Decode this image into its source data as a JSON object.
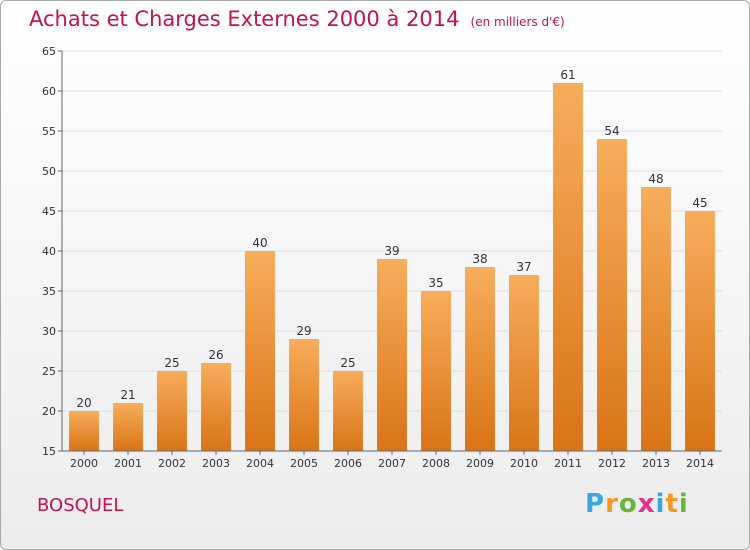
{
  "title": "Achats et Charges Externes 2000 à 2014",
  "unit": "(en milliers d'€)",
  "commune": "BOSQUEL",
  "logo": [
    "P",
    "r",
    "o",
    "x",
    "i",
    "t",
    "i"
  ],
  "colors": {
    "bar": "#f0923a",
    "bar_light": "#f7ad5c",
    "bar_dark": "#d97416",
    "title": "#c8104d",
    "grid": "#dddddd"
  },
  "chart_data": {
    "type": "bar",
    "categories": [
      "2000",
      "2001",
      "2002",
      "2003",
      "2004",
      "2005",
      "2006",
      "2007",
      "2008",
      "2009",
      "2010",
      "2011",
      "2012",
      "2013",
      "2014"
    ],
    "values": [
      20,
      21,
      25,
      26,
      40,
      29,
      25,
      39,
      35,
      38,
      37,
      61,
      54,
      48,
      45
    ],
    "ylim": [
      15,
      65
    ],
    "yticks": [
      15,
      20,
      25,
      30,
      35,
      40,
      45,
      50,
      55,
      60,
      65
    ],
    "grid": true,
    "data_labels": true,
    "xlabel": "",
    "ylabel": ""
  }
}
